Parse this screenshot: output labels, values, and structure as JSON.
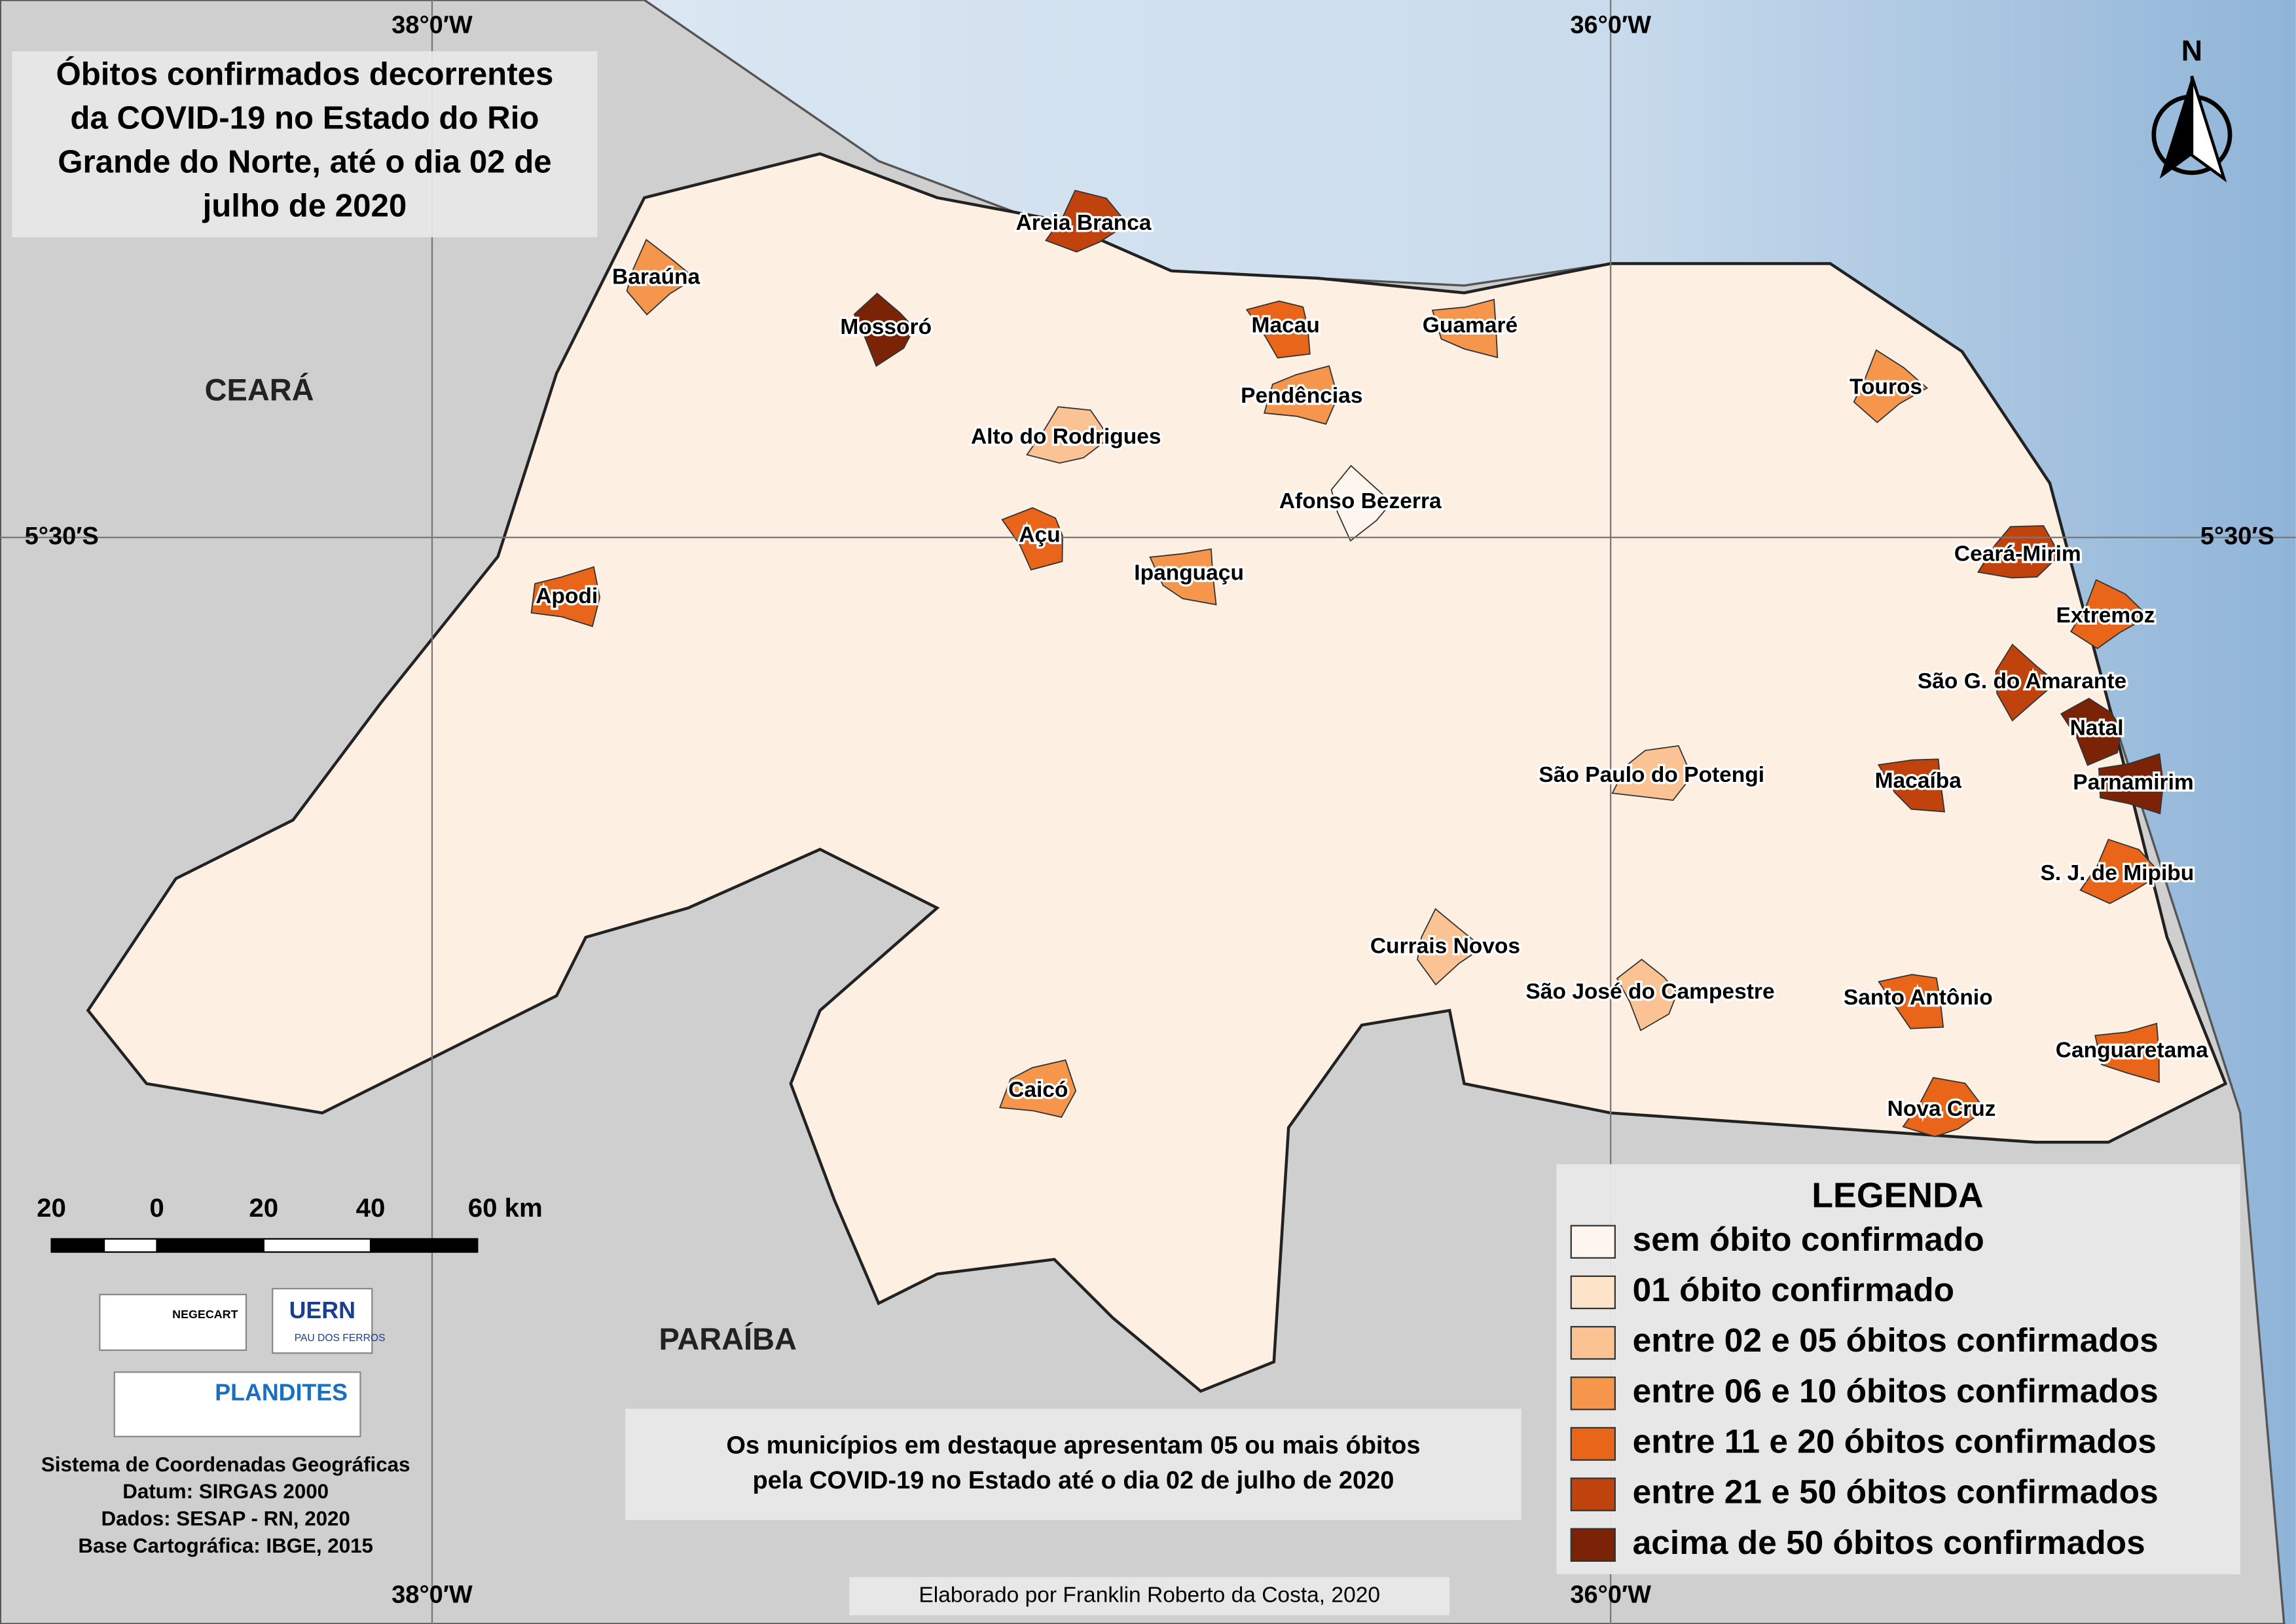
{
  "title_lines": [
    "Óbitos confirmados decorrentes",
    "da COVID-19 no Estado do Rio",
    "Grande do Norte, até o dia 02 de",
    "julho de 2020"
  ],
  "graticule": {
    "longitudes": [
      "38°0′W",
      "36°0′W"
    ],
    "latitude": "5°30′S"
  },
  "neighbors": [
    "CEARÁ",
    "PARAÍBA"
  ],
  "north": "N",
  "municipalities": [
    {
      "name": "Areia Branca",
      "class": 5
    },
    {
      "name": "Baraúna",
      "class": 3
    },
    {
      "name": "Mossoró",
      "class": 6
    },
    {
      "name": "Macau",
      "class": 4
    },
    {
      "name": "Guamaré",
      "class": 3
    },
    {
      "name": "Pendências",
      "class": 3
    },
    {
      "name": "Alto do Rodrigues",
      "class": 2
    },
    {
      "name": "Touros",
      "class": 3
    },
    {
      "name": "Afonso Bezerra",
      "class": 0
    },
    {
      "name": "Açu",
      "class": 4
    },
    {
      "name": "Ipanguaçu",
      "class": 3
    },
    {
      "name": "Apodi",
      "class": 4
    },
    {
      "name": "Ceará-Mirim",
      "class": 5
    },
    {
      "name": "Extremoz",
      "class": 4
    },
    {
      "name": "São G. do Amarante",
      "class": 5
    },
    {
      "name": "Natal",
      "class": 6
    },
    {
      "name": "Macaíba",
      "class": 5
    },
    {
      "name": "Parnamirim",
      "class": 6
    },
    {
      "name": "São Paulo do Potengi",
      "class": 2
    },
    {
      "name": "S. J. de Mipibu",
      "class": 4
    },
    {
      "name": "Currais Novos",
      "class": 2
    },
    {
      "name": "São José do Campestre",
      "class": 2
    },
    {
      "name": "Santo Antônio",
      "class": 4
    },
    {
      "name": "Canguaretama",
      "class": 4
    },
    {
      "name": "Caicó",
      "class": 3
    },
    {
      "name": "Nova Cruz",
      "class": 4
    }
  ],
  "legend": {
    "title": "LEGENDA",
    "items": [
      {
        "label": "sem óbito confirmado",
        "color": "#fef6ee"
      },
      {
        "label": "01 óbito confirmado",
        "color": "#fde3c8"
      },
      {
        "label": "entre 02 e 05 óbitos confirmados",
        "color": "#fbc394"
      },
      {
        "label": "entre 06 e 10 óbitos confirmados",
        "color": "#f5964c"
      },
      {
        "label": "entre 11 e 20 óbitos confirmados",
        "color": "#e8651a"
      },
      {
        "label": "entre 21 e 50 óbitos confirmados",
        "color": "#c0420c"
      },
      {
        "label": "acima de 50 óbitos confirmados",
        "color": "#7a2306"
      }
    ]
  },
  "scale_bar": [
    "20",
    "0",
    "20",
    "40",
    "60 km"
  ],
  "logos": [
    "NEGECART",
    "UERN",
    "PAU DOS FERROS",
    "PLANDITES"
  ],
  "metadata": [
    "Sistema de Coordenadas Geográficas",
    "Datum: SIRGAS 2000",
    "Dados: SESAP - RN, 2020",
    "Base Cartográfica: IBGE, 2015"
  ],
  "note_lines": [
    "Os municípios em destaque apresentam 05 ou mais óbitos",
    "pela COVID-19 no Estado até o dia 02 de julho de 2020"
  ],
  "credit": "Elaborado por Franklin Roberto da Costa, 2020"
}
